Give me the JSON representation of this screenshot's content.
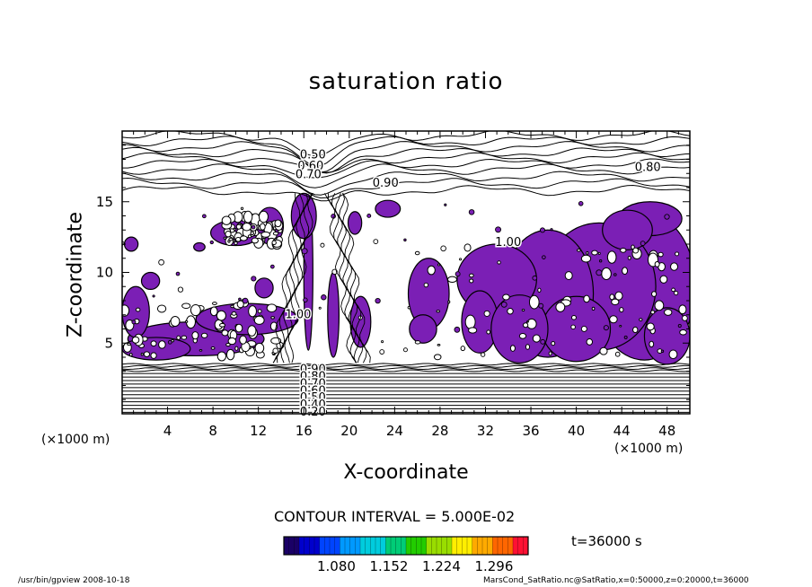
{
  "chart_data": {
    "type": "contour",
    "title": "saturation ratio",
    "xlabel": "X-coordinate",
    "ylabel": "Z-coordinate",
    "x_unit": "(×1000 m)",
    "y_unit": "",
    "xlim": [
      0,
      50
    ],
    "ylim": [
      0,
      20
    ],
    "x_ticks": [
      4,
      8,
      12,
      16,
      20,
      24,
      28,
      32,
      36,
      40,
      44,
      48
    ],
    "y_ticks": [
      5,
      10,
      15
    ],
    "contour_interval": "CONTOUR INTERVAL = 5.000E-02",
    "time_label": "t=36000 s",
    "contour_labels": [
      {
        "text": "0.50",
        "x": 16.8,
        "y": 18.3
      },
      {
        "text": "0.60",
        "x": 16.6,
        "y": 17.5
      },
      {
        "text": "0.70",
        "x": 16.4,
        "y": 16.9
      },
      {
        "text": "0.80",
        "x": 46.3,
        "y": 17.4
      },
      {
        "text": "0.90",
        "x": 23.2,
        "y": 16.3
      },
      {
        "text": "1.00",
        "x": 34.0,
        "y": 12.1
      },
      {
        "text": "1.00",
        "x": 15.5,
        "y": 7.0
      },
      {
        "text": "0.90",
        "x": 16.8,
        "y": 3.1
      },
      {
        "text": "0.80",
        "x": 16.8,
        "y": 2.6
      },
      {
        "text": "0.70",
        "x": 16.8,
        "y": 2.1
      },
      {
        "text": "0.60",
        "x": 16.8,
        "y": 1.6
      },
      {
        "text": "0.50",
        "x": 16.8,
        "y": 1.1
      },
      {
        "text": "0.40",
        "x": 16.8,
        "y": 0.6
      },
      {
        "text": "0.20",
        "x": 16.8,
        "y": 0.1
      }
    ],
    "shaded_threshold": 1.0,
    "shade_color": "#7B1FB5",
    "colorbar": {
      "ticks": [
        "1.080",
        "1.152",
        "1.224",
        "1.296"
      ],
      "colors": [
        "#1a0066",
        "#0000cc",
        "#0044ff",
        "#0099ff",
        "#00ccdd",
        "#00cc77",
        "#22cc00",
        "#99dd00",
        "#ffee00",
        "#ffaa00",
        "#ff6600",
        "#ff1133"
      ]
    }
  },
  "footer": {
    "left": "/usr/bin/gpview  2008-10-18",
    "right": "MarsCond_SatRatio.nc@SatRatio,x=0:50000,z=0:20000,t=36000"
  }
}
